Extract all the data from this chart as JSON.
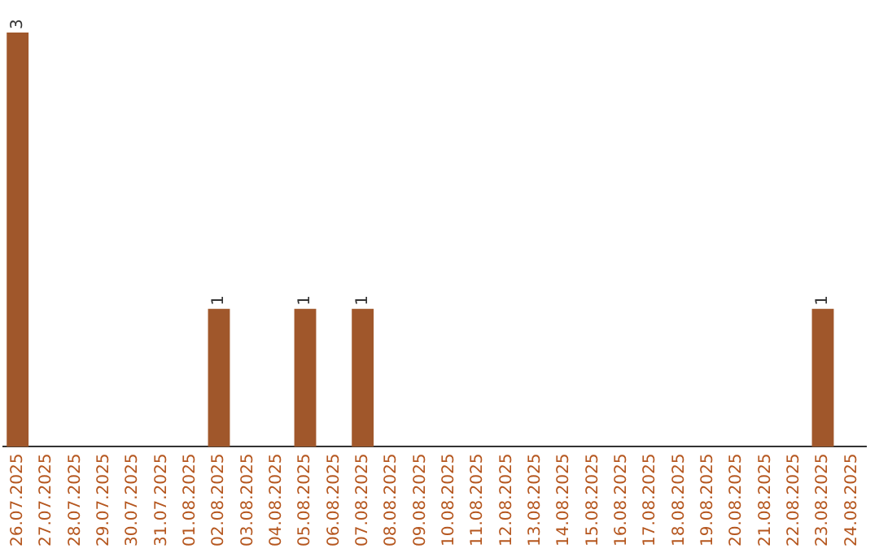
{
  "chart_data": {
    "type": "bar",
    "categories": [
      "26.07.2025",
      "27.07.2025",
      "28.07.2025",
      "29.07.2025",
      "30.07.2025",
      "31.07.2025",
      "01.08.2025",
      "02.08.2025",
      "03.08.2025",
      "04.08.2025",
      "05.08.2025",
      "06.08.2025",
      "07.08.2025",
      "08.08.2025",
      "09.08.2025",
      "10.08.2025",
      "11.08.2025",
      "12.08.2025",
      "13.08.2025",
      "14.08.2025",
      "15.08.2025",
      "16.08.2025",
      "17.08.2025",
      "18.08.2025",
      "19.08.2025",
      "20.08.2025",
      "21.08.2025",
      "22.08.2025",
      "23.08.2025",
      "24.08.2025"
    ],
    "values": [
      3,
      0,
      0,
      0,
      0,
      0,
      0,
      1,
      0,
      0,
      1,
      0,
      1,
      0,
      0,
      0,
      0,
      0,
      0,
      0,
      0,
      0,
      0,
      0,
      0,
      0,
      0,
      0,
      1,
      0
    ],
    "value_labels": [
      "3",
      null,
      null,
      null,
      null,
      null,
      null,
      "1",
      null,
      null,
      "1",
      null,
      "1",
      null,
      null,
      null,
      null,
      null,
      null,
      null,
      null,
      null,
      null,
      null,
      null,
      null,
      null,
      null,
      "1",
      null
    ],
    "color": "#a0572b",
    "tick_labels": "x",
    "grid": false,
    "legend": false
  }
}
